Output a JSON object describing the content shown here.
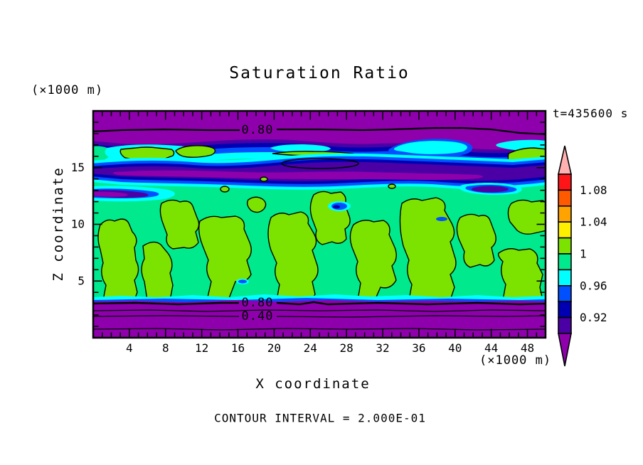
{
  "figure": {
    "title": "Saturation Ratio",
    "timestamp": "t=435600 s",
    "top_left_units": "(×1000 m)",
    "bottom_right_units": "(×1000 m)",
    "x_label": "X coordinate",
    "y_label": "Z coordinate",
    "contour_note": "CONTOUR INTERVAL = 2.000E-01"
  },
  "chart_data": {
    "type": "heatmap",
    "subtype": "filled-contour",
    "title": "Saturation Ratio",
    "xlabel": "X coordinate",
    "ylabel": "Z coordinate",
    "x_units": "×1000 m",
    "y_units": "×1000 m",
    "x_range": [
      0,
      50
    ],
    "y_range": [
      0,
      20
    ],
    "x_major_ticks": [
      4,
      8,
      12,
      16,
      20,
      24,
      28,
      32,
      36,
      40,
      44,
      48
    ],
    "x_minor_step": 1,
    "y_major_ticks": [
      5,
      10,
      15
    ],
    "y_minor_step": 1,
    "grid": false,
    "legend_position": "right",
    "time_label": "t=435600 s",
    "contour_interval": "2.000E-01",
    "contour_line_labels": {
      "top": "0.80",
      "bottom_upper": "0.80",
      "bottom_lower": "0.40"
    },
    "palette": {
      "over": "#FFB0B0",
      "red": "#FF1418",
      "orange_red": "#FF5A00",
      "orange": "#FFA300",
      "yellow": "#FFF000",
      "chartreuse": "#7CE300",
      "spring_green": "#00E98C",
      "cyan": "#00FFFF",
      "blue": "#0050FF",
      "navy": "#0000B2",
      "violet": "#4B00A5",
      "under": "#8F00AD"
    },
    "colorbar": {
      "orientation": "vertical",
      "position": "right",
      "over_color_key": "over",
      "under_color_key": "under",
      "cells": [
        {
          "min": 1.08,
          "max": 1.1,
          "color_key": "red"
        },
        {
          "min": 1.06,
          "max": 1.08,
          "color_key": "orange_red"
        },
        {
          "min": 1.04,
          "max": 1.06,
          "color_key": "orange"
        },
        {
          "min": 1.02,
          "max": 1.04,
          "color_key": "yellow"
        },
        {
          "min": 1.0,
          "max": 1.02,
          "color_key": "chartreuse"
        },
        {
          "min": 0.98,
          "max": 1.0,
          "color_key": "spring_green"
        },
        {
          "min": 0.96,
          "max": 0.98,
          "color_key": "cyan"
        },
        {
          "min": 0.94,
          "max": 0.96,
          "color_key": "blue"
        },
        {
          "min": 0.92,
          "max": 0.94,
          "color_key": "navy"
        },
        {
          "min": 0.9,
          "max": 0.92,
          "color_key": "violet"
        }
      ],
      "tick_labels": [
        {
          "text": "1.08",
          "boundary_index": 1
        },
        {
          "text": "1.04",
          "boundary_index": 3
        },
        {
          "text": "1",
          "boundary_index": 5
        },
        {
          "text": "0.96",
          "boundary_index": 7
        },
        {
          "text": "0.92",
          "boundary_index": 9
        }
      ]
    },
    "field_summary": {
      "background_band": "0.98-1.00 (spring green) fills most of the domain",
      "saturated_patches": "many irregular patches of 1.00-1.02 (yellow-green) with black contour outlines between z~3 and z~14",
      "upper_dry_band": "purple/blue/cyan layered band (S<0.96) around z~14-16 with a 0.80 contour near the top edge",
      "top_band": "uniform purple band (S<0.90) above z~18 labeled by the 0.80 contour",
      "bottom_band": "uniform purple band (S<0.90) below z~3.5 with stacked contour lines labeled 0.80 and 0.40"
    }
  }
}
